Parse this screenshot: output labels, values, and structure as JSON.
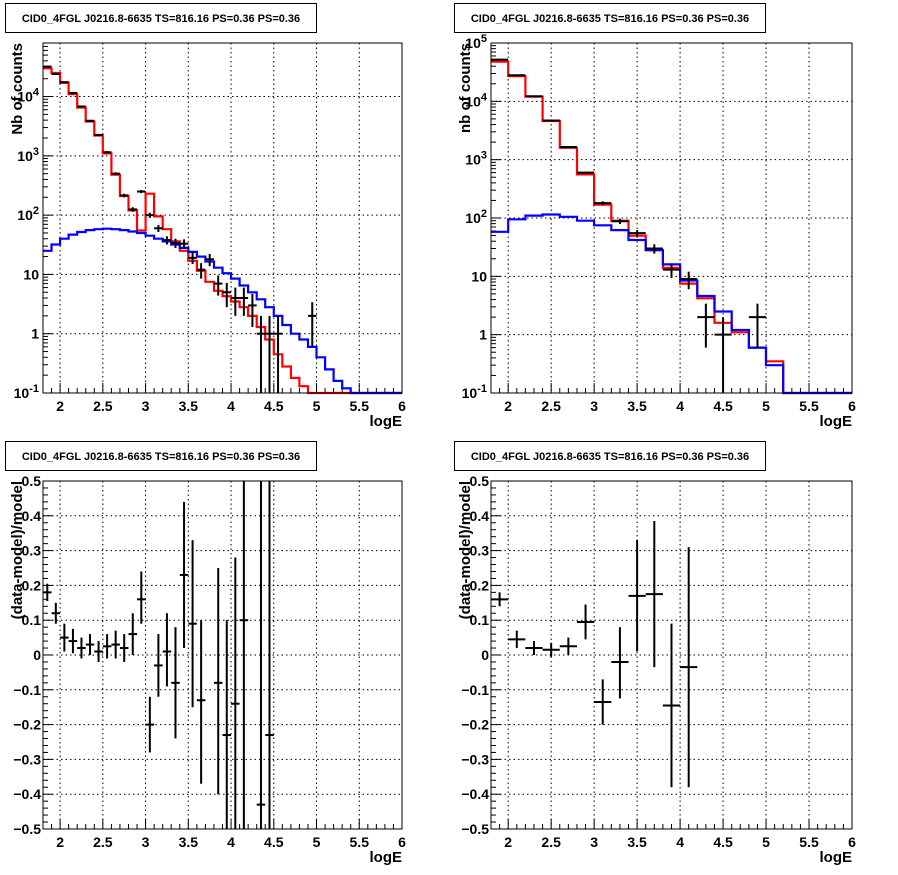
{
  "panels": [
    {
      "title": "CID0_4FGL J0216.8-6635 TS=816.16 PS=0.36 PS=0.36"
    },
    {
      "title": "CID0_4FGL J0216.8-6635 TS=816.16 PS=0.36 PS=0.36"
    },
    {
      "title": "CID0_4FGL J0216.8-6635 TS=816.16 PS=0.36 PS=0.36"
    },
    {
      "title": "CID0_4FGL J0216.8-6635 TS=816.16 PS=0.36 PS=0.36"
    }
  ],
  "colors": {
    "total": "#ff0000",
    "source": "#0000ff",
    "data": "#000000"
  },
  "chart_data": [
    {
      "type": "line",
      "title": "CID0_4FGL J0216.8-6635 TS=816.16 PS=0.36 PS=0.36",
      "xlabel": "logE",
      "ylabel": "Nb of counts",
      "xlim": [
        1.8,
        6
      ],
      "ylim": [
        0.1,
        80000
      ],
      "yscale": "log",
      "grid": true,
      "xticks": [
        "2",
        "2.5",
        "3",
        "3.5",
        "4",
        "4.5",
        "5",
        "5.5",
        "6"
      ],
      "yticks": [
        "10^-1",
        "1",
        "10",
        "10^2",
        "10^3",
        "10^4"
      ],
      "bin_edges": [
        1.8,
        1.9,
        2.0,
        2.1,
        2.2,
        2.3,
        2.4,
        2.5,
        2.6,
        2.7,
        2.8,
        2.9,
        3.0,
        3.1,
        3.2,
        3.3,
        3.4,
        3.5,
        3.6,
        3.7,
        3.8,
        3.9,
        4.0,
        4.1,
        4.2,
        4.3,
        4.4,
        4.5,
        4.6,
        4.7,
        4.8,
        4.9,
        5.0,
        5.1,
        5.2,
        5.3,
        5.4,
        5.5,
        5.6,
        5.7,
        5.8,
        5.9,
        6.0
      ],
      "series": [
        {
          "role": "total_model",
          "values": [
            30000,
            25000,
            17000,
            11000,
            6500,
            3800,
            2200,
            1100,
            480,
            210,
            120,
            55,
            230,
            95,
            58,
            36,
            25,
            17,
            11.5,
            7.5,
            5.3,
            4.3,
            3.5,
            2.8,
            2.0,
            1.3,
            0.8,
            0.45,
            0.28,
            0.18,
            0.13,
            0.1,
            0.1,
            0.1,
            0.1,
            0.1,
            0.1,
            0.1,
            0.1,
            0.1,
            0.1,
            0.1
          ]
        },
        {
          "role": "source_model",
          "values": [
            25,
            32,
            40,
            47,
            52,
            56,
            58,
            59,
            58,
            56,
            53,
            50,
            45,
            40,
            36,
            32,
            28,
            24,
            20,
            16.5,
            13,
            10.5,
            8.5,
            6.5,
            5.0,
            3.8,
            2.8,
            2.0,
            1.4,
            1.0,
            0.8,
            0.6,
            0.4,
            0.25,
            0.16,
            0.12,
            0.1,
            0.1,
            0.1,
            0.1,
            0.1,
            0.1
          ]
        }
      ],
      "points": [
        {
          "x": 1.85,
          "y": 32000,
          "dx": 0.05,
          "ylo": 31000,
          "yhi": 33000
        },
        {
          "x": 1.95,
          "y": 24000,
          "dx": 0.05,
          "ylo": 23300,
          "yhi": 24700
        },
        {
          "x": 2.05,
          "y": 17500,
          "dx": 0.05,
          "ylo": 17000,
          "yhi": 18000
        },
        {
          "x": 2.15,
          "y": 11500,
          "dx": 0.05,
          "ylo": 11100,
          "yhi": 11900
        },
        {
          "x": 2.25,
          "y": 6800,
          "dx": 0.05,
          "ylo": 6600,
          "yhi": 7000
        },
        {
          "x": 2.35,
          "y": 3900,
          "dx": 0.05,
          "ylo": 3750,
          "yhi": 4050
        },
        {
          "x": 2.45,
          "y": 2250,
          "dx": 0.05,
          "ylo": 2150,
          "yhi": 2350
        },
        {
          "x": 2.55,
          "y": 1150,
          "dx": 0.05,
          "ylo": 1100,
          "yhi": 1200
        },
        {
          "x": 2.65,
          "y": 500,
          "dx": 0.05,
          "ylo": 470,
          "yhi": 530
        },
        {
          "x": 2.75,
          "y": 215,
          "dx": 0.05,
          "ylo": 200,
          "yhi": 230
        },
        {
          "x": 2.85,
          "y": 125,
          "dx": 0.05,
          "ylo": 114,
          "yhi": 136
        },
        {
          "x": 2.95,
          "y": 250,
          "dx": 0.05,
          "ylo": 235,
          "yhi": 265
        },
        {
          "x": 3.05,
          "y": 100,
          "dx": 0.05,
          "ylo": 90,
          "yhi": 110
        },
        {
          "x": 3.15,
          "y": 60,
          "dx": 0.05,
          "ylo": 52,
          "yhi": 68
        },
        {
          "x": 3.25,
          "y": 38,
          "dx": 0.05,
          "ylo": 32,
          "yhi": 44
        },
        {
          "x": 3.35,
          "y": 34,
          "dx": 0.05,
          "ylo": 28,
          "yhi": 40
        },
        {
          "x": 3.45,
          "y": 33,
          "dx": 0.05,
          "ylo": 27,
          "yhi": 39
        },
        {
          "x": 3.55,
          "y": 19,
          "dx": 0.05,
          "ylo": 15,
          "yhi": 24
        },
        {
          "x": 3.65,
          "y": 12,
          "dx": 0.05,
          "ylo": 8.5,
          "yhi": 15.5
        },
        {
          "x": 3.75,
          "y": 18,
          "dx": 0.05,
          "ylo": 13.8,
          "yhi": 22.2
        },
        {
          "x": 3.85,
          "y": 7,
          "dx": 0.05,
          "ylo": 4.4,
          "yhi": 9.6
        },
        {
          "x": 3.95,
          "y": 5,
          "dx": 0.05,
          "ylo": 2.8,
          "yhi": 7.2
        },
        {
          "x": 4.05,
          "y": 4,
          "dx": 0.05,
          "ylo": 2.0,
          "yhi": 6.0
        },
        {
          "x": 4.15,
          "y": 4,
          "dx": 0.05,
          "ylo": 2.0,
          "yhi": 6.0
        },
        {
          "x": 4.25,
          "y": 3,
          "dx": 0.05,
          "ylo": 1.3,
          "yhi": 4.7
        },
        {
          "x": 4.35,
          "y": 1,
          "dx": 0.05,
          "ylo": 0.1,
          "yhi": 2.0
        },
        {
          "x": 4.45,
          "y": 1,
          "dx": 0.05,
          "ylo": 0.1,
          "yhi": 2.0
        },
        {
          "x": 4.55,
          "y": 1,
          "dx": 0.05,
          "ylo": 0.1,
          "yhi": 2.0
        },
        {
          "x": 4.95,
          "y": 2,
          "dx": 0.05,
          "ylo": 0.6,
          "yhi": 3.4
        }
      ]
    },
    {
      "type": "line",
      "title": "CID0_4FGL J0216.8-6635 TS=816.16 PS=0.36 PS=0.36",
      "xlabel": "logE",
      "ylabel": "nb of counts",
      "xlim": [
        1.8,
        6
      ],
      "ylim": [
        0.1,
        100000
      ],
      "yscale": "log",
      "grid": true,
      "xticks": [
        "2",
        "2.5",
        "3",
        "3.5",
        "4",
        "4.5",
        "5",
        "5.5",
        "6"
      ],
      "yticks": [
        "10^-1",
        "1",
        "10",
        "10^2",
        "10^3",
        "10^4",
        "10^5"
      ],
      "bin_edges": [
        1.8,
        2.0,
        2.2,
        2.4,
        2.6,
        2.8,
        3.0,
        3.2,
        3.4,
        3.6,
        3.8,
        4.0,
        4.2,
        4.4,
        4.6,
        4.8,
        5.0,
        5.2,
        5.4,
        5.6,
        5.8,
        6.0
      ],
      "series": [
        {
          "role": "total_model",
          "values": [
            48000,
            27000,
            12000,
            4600,
            1600,
            560,
            170,
            90,
            50,
            28,
            14,
            7.5,
            4.2,
            1.6,
            1.1,
            0.6,
            0.35,
            0.1,
            0.1,
            0.1,
            0.1
          ]
        },
        {
          "role": "source_model",
          "values": [
            58,
            95,
            110,
            115,
            105,
            90,
            75,
            62,
            42,
            28,
            16,
            8.5,
            4.6,
            2.5,
            1.2,
            0.6,
            0.3,
            0.1,
            0.1,
            0.1,
            0.1
          ]
        }
      ],
      "points": [
        {
          "x": 1.9,
          "y": 52000,
          "dx": 0.1,
          "ylo": 51000,
          "yhi": 53000
        },
        {
          "x": 2.1,
          "y": 28000,
          "dx": 0.1,
          "ylo": 27500,
          "yhi": 28500
        },
        {
          "x": 2.3,
          "y": 12200,
          "dx": 0.1,
          "ylo": 12000,
          "yhi": 12400
        },
        {
          "x": 2.5,
          "y": 4700,
          "dx": 0.1,
          "ylo": 4600,
          "yhi": 4800
        },
        {
          "x": 2.7,
          "y": 1650,
          "dx": 0.1,
          "ylo": 1600,
          "yhi": 1700
        },
        {
          "x": 2.9,
          "y": 600,
          "dx": 0.1,
          "ylo": 575,
          "yhi": 625
        },
        {
          "x": 3.1,
          "y": 180,
          "dx": 0.1,
          "ylo": 167,
          "yhi": 193
        },
        {
          "x": 3.3,
          "y": 88,
          "dx": 0.1,
          "ylo": 79,
          "yhi": 97
        },
        {
          "x": 3.5,
          "y": 55,
          "dx": 0.1,
          "ylo": 48,
          "yhi": 62
        },
        {
          "x": 3.7,
          "y": 30,
          "dx": 0.1,
          "ylo": 24.5,
          "yhi": 35.5
        },
        {
          "x": 3.9,
          "y": 13,
          "dx": 0.1,
          "ylo": 9.4,
          "yhi": 16.6
        },
        {
          "x": 4.1,
          "y": 9,
          "dx": 0.1,
          "ylo": 6,
          "yhi": 12
        },
        {
          "x": 4.3,
          "y": 2,
          "dx": 0.1,
          "ylo": 0.6,
          "yhi": 3.4
        },
        {
          "x": 4.5,
          "y": 1,
          "dx": 0.1,
          "ylo": 0.1,
          "yhi": 2.0
        },
        {
          "x": 4.9,
          "y": 2,
          "dx": 0.1,
          "ylo": 0.6,
          "yhi": 3.4
        }
      ]
    },
    {
      "type": "scatter",
      "title": "CID0_4FGL J0216.8-6635 TS=816.16 PS=0.36 PS=0.36",
      "xlabel": "logE",
      "ylabel": "(data-model)/model",
      "xlim": [
        1.8,
        6
      ],
      "ylim": [
        -0.5,
        0.5
      ],
      "grid": true,
      "xticks": [
        "2",
        "2.5",
        "3",
        "3.5",
        "4",
        "4.5",
        "5",
        "5.5",
        "6"
      ],
      "yticks": [
        "-0.5",
        "-0.4",
        "-0.3",
        "-0.2",
        "-0.1",
        "0",
        "0.1",
        "0.2",
        "0.3",
        "0.4",
        "0.5"
      ],
      "points": [
        {
          "x": 1.85,
          "y": 0.18,
          "dx": 0.05,
          "ylo": 0.155,
          "yhi": 0.205
        },
        {
          "x": 1.95,
          "y": 0.12,
          "dx": 0.05,
          "ylo": 0.09,
          "yhi": 0.15
        },
        {
          "x": 2.05,
          "y": 0.05,
          "dx": 0.05,
          "ylo": 0.01,
          "yhi": 0.09
        },
        {
          "x": 2.15,
          "y": 0.04,
          "dx": 0.05,
          "ylo": 0.005,
          "yhi": 0.075
        },
        {
          "x": 2.25,
          "y": 0.02,
          "dx": 0.05,
          "ylo": -0.01,
          "yhi": 0.05
        },
        {
          "x": 2.35,
          "y": 0.03,
          "dx": 0.05,
          "ylo": 0.0,
          "yhi": 0.06
        },
        {
          "x": 2.45,
          "y": 0.01,
          "dx": 0.05,
          "ylo": -0.02,
          "yhi": 0.04
        },
        {
          "x": 2.55,
          "y": 0.025,
          "dx": 0.05,
          "ylo": -0.01,
          "yhi": 0.06
        },
        {
          "x": 2.65,
          "y": 0.03,
          "dx": 0.05,
          "ylo": -0.01,
          "yhi": 0.07
        },
        {
          "x": 2.75,
          "y": 0.02,
          "dx": 0.05,
          "ylo": -0.02,
          "yhi": 0.06
        },
        {
          "x": 2.85,
          "y": 0.06,
          "dx": 0.05,
          "ylo": 0.0,
          "yhi": 0.12
        },
        {
          "x": 2.95,
          "y": 0.16,
          "dx": 0.05,
          "ylo": 0.09,
          "yhi": 0.24
        },
        {
          "x": 3.05,
          "y": -0.2,
          "dx": 0.05,
          "ylo": -0.28,
          "yhi": -0.12
        },
        {
          "x": 3.15,
          "y": -0.03,
          "dx": 0.05,
          "ylo": -0.12,
          "yhi": 0.06
        },
        {
          "x": 3.25,
          "y": 0.01,
          "dx": 0.05,
          "ylo": -0.09,
          "yhi": 0.12
        },
        {
          "x": 3.35,
          "y": -0.08,
          "dx": 0.05,
          "ylo": -0.24,
          "yhi": 0.08
        },
        {
          "x": 3.45,
          "y": 0.23,
          "dx": 0.05,
          "ylo": 0.02,
          "yhi": 0.44
        },
        {
          "x": 3.55,
          "y": 0.09,
          "dx": 0.05,
          "ylo": -0.15,
          "yhi": 0.33
        },
        {
          "x": 3.65,
          "y": -0.13,
          "dx": 0.05,
          "ylo": -0.37,
          "yhi": 0.1
        },
        {
          "x": 3.85,
          "y": -0.08,
          "dx": 0.05,
          "ylo": -0.4,
          "yhi": 0.25
        },
        {
          "x": 3.95,
          "y": -0.23,
          "dx": 0.05,
          "ylo": -0.5,
          "yhi": 0.1
        },
        {
          "x": 4.05,
          "y": -0.14,
          "dx": 0.05,
          "ylo": -0.5,
          "yhi": 0.28
        },
        {
          "x": 4.15,
          "y": 0.1,
          "dx": 0.05,
          "ylo": -0.5,
          "yhi": 0.5
        },
        {
          "x": 4.35,
          "y": -0.43,
          "dx": 0.05,
          "ylo": -0.5,
          "yhi": 0.5
        },
        {
          "x": 4.45,
          "y": -0.23,
          "dx": 0.05,
          "ylo": -0.5,
          "yhi": 0.5
        }
      ]
    },
    {
      "type": "scatter",
      "title": "CID0_4FGL J0216.8-6635 TS=816.16 PS=0.36 PS=0.36",
      "xlabel": "logE",
      "ylabel": "(data-model)/model",
      "xlim": [
        1.8,
        6
      ],
      "ylim": [
        -0.5,
        0.5
      ],
      "grid": true,
      "xticks": [
        "2",
        "2.5",
        "3",
        "3.5",
        "4",
        "4.5",
        "5",
        "5.5",
        "6"
      ],
      "yticks": [
        "-0.5",
        "-0.4",
        "-0.3",
        "-0.2",
        "-0.1",
        "0",
        "0.1",
        "0.2",
        "0.3",
        "0.4",
        "0.5"
      ],
      "points": [
        {
          "x": 1.9,
          "y": 0.16,
          "dx": 0.1,
          "ylo": 0.14,
          "yhi": 0.18
        },
        {
          "x": 2.1,
          "y": 0.045,
          "dx": 0.1,
          "ylo": 0.02,
          "yhi": 0.07
        },
        {
          "x": 2.3,
          "y": 0.02,
          "dx": 0.1,
          "ylo": 0.0,
          "yhi": 0.04
        },
        {
          "x": 2.5,
          "y": 0.015,
          "dx": 0.1,
          "ylo": -0.005,
          "yhi": 0.035
        },
        {
          "x": 2.7,
          "y": 0.025,
          "dx": 0.1,
          "ylo": 0.0,
          "yhi": 0.05
        },
        {
          "x": 2.9,
          "y": 0.095,
          "dx": 0.1,
          "ylo": 0.045,
          "yhi": 0.145
        },
        {
          "x": 3.1,
          "y": -0.135,
          "dx": 0.1,
          "ylo": -0.2,
          "yhi": -0.07
        },
        {
          "x": 3.3,
          "y": -0.02,
          "dx": 0.1,
          "ylo": -0.125,
          "yhi": 0.08
        },
        {
          "x": 3.5,
          "y": 0.17,
          "dx": 0.1,
          "ylo": 0.01,
          "yhi": 0.33
        },
        {
          "x": 3.7,
          "y": 0.175,
          "dx": 0.1,
          "ylo": -0.035,
          "yhi": 0.385
        },
        {
          "x": 3.9,
          "y": -0.145,
          "dx": 0.1,
          "ylo": -0.38,
          "yhi": 0.09
        },
        {
          "x": 4.1,
          "y": -0.035,
          "dx": 0.1,
          "ylo": -0.38,
          "yhi": 0.31
        }
      ]
    }
  ]
}
